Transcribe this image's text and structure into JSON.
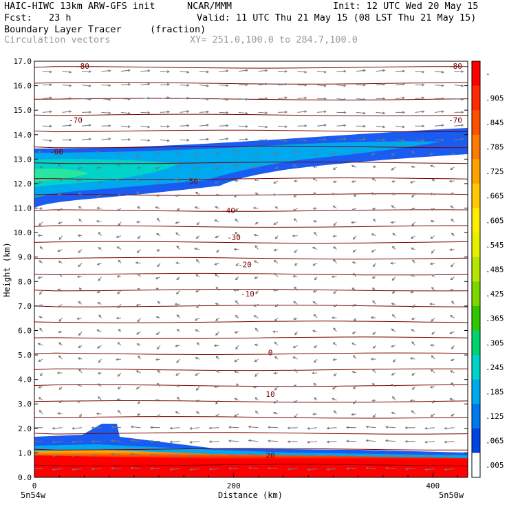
{
  "header": {
    "model": "HAIC-HIWC 13km ARW-GFS init",
    "org": "NCAR/MMM",
    "init": "Init: 12 UTC Wed 20 May 15",
    "fcst": "Fcst:   23 h",
    "valid": "Valid: 11 UTC Thu 21 May 15 (08 LST Thu 21 May 15)",
    "field": "Boundary Layer Tracer",
    "units": "(fraction)",
    "vectors": "Circulation vectors",
    "xsec": "XY= 251.0,100.0 to 284.7,100.0"
  },
  "chart_data": {
    "type": "cross-section",
    "xlabel": "Distance (km)",
    "ylabel": "Height (km)",
    "xlim": [
      0,
      435
    ],
    "ylim": [
      0,
      17
    ],
    "xticks": [
      {
        "value": 0,
        "label": "0"
      },
      {
        "value": 200,
        "label": "200"
      },
      {
        "value": 400,
        "label": "400"
      }
    ],
    "x_end_labels": {
      "left": "5n54w",
      "right": "5n50w"
    },
    "yticks": [
      "0.0",
      "1.0",
      "2.0",
      "3.0",
      "4.0",
      "5.0",
      "6.0",
      "7.0",
      "8.0",
      "9.0",
      "10.0",
      "11.0",
      "12.0",
      "13.0",
      "14.0",
      "15.0",
      "16.0",
      "17.0"
    ],
    "colorbar": {
      "labels": [
        "-",
        ".905",
        ".845",
        ".785",
        ".725",
        ".665",
        ".605",
        ".545",
        ".485",
        ".425",
        ".365",
        ".305",
        ".245",
        ".185",
        ".125",
        ".065",
        ".005"
      ],
      "colors": [
        "#ff0000",
        "#ff2a00",
        "#ff5000",
        "#ff7a00",
        "#ffa200",
        "#ffc800",
        "#ffec00",
        "#e4f000",
        "#b4e600",
        "#7ad800",
        "#2ec800",
        "#00d26e",
        "#00d4c8",
        "#00a8ee",
        "#0078f0",
        "#0044e6",
        "#ffffff"
      ]
    },
    "temperature_contours_C": [
      {
        "label": "-80",
        "height_km": 16.8
      },
      {
        "label": "-70",
        "height_km": 14.6
      },
      {
        "label": "-60",
        "height_km": 13.3
      },
      {
        "label": "-50",
        "height_km": 12.1
      },
      {
        "label": "-40",
        "height_km": 10.9
      },
      {
        "label": "-30",
        "height_km": 9.8
      },
      {
        "label": "-20",
        "height_km": 8.7
      },
      {
        "label": "-10",
        "height_km": 7.5
      },
      {
        "label": "0",
        "height_km": 5.1
      },
      {
        "label": "10",
        "height_km": 3.4
      },
      {
        "label": "20",
        "height_km": 0.9
      }
    ],
    "contour_color": "#7a0000",
    "vector_color": "#777777"
  }
}
